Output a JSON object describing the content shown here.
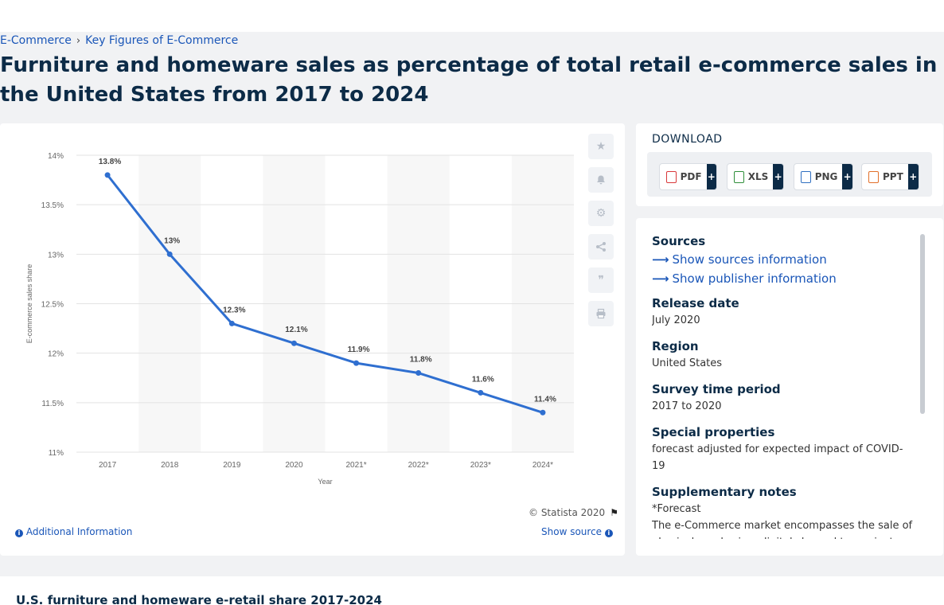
{
  "breadcrumb": {
    "items": [
      "E-Commerce",
      "Key Figures of E-Commerce"
    ]
  },
  "page_title": "Furniture and homeware sales as percentage of total retail e-commerce sales in the United States from 2017 to 2024",
  "chart_footer": {
    "copyright": "© Statista 2020",
    "additional_info": "Additional Information",
    "show_source": "Show source"
  },
  "download": {
    "title": "DOWNLOAD",
    "buttons": [
      {
        "label": "PDF",
        "color": "#d9383a"
      },
      {
        "label": "XLS",
        "color": "#2f8f3a"
      },
      {
        "label": "PNG",
        "color": "#2f6fc0"
      },
      {
        "label": "PPT",
        "color": "#e2702a"
      }
    ]
  },
  "meta": {
    "sources_heading": "Sources",
    "show_sources": "Show sources information",
    "show_publisher": "Show publisher information",
    "release_date_heading": "Release date",
    "release_date": "July 2020",
    "region_heading": "Region",
    "region": "United States",
    "survey_heading": "Survey time period",
    "survey": "2017 to 2020",
    "special_heading": "Special properties",
    "special": "forecast adjusted for expected impact of COVID-19",
    "notes_heading": "Supplementary notes",
    "notes_1": "*Forecast",
    "notes_2": "The e-Commerce market encompasses the sale of physical goods via a digital channel to a private end"
  },
  "bottom_title": "U.S. furniture and homeware e-retail share 2017-2024",
  "chart_data": {
    "type": "line",
    "categories": [
      "2017",
      "2018",
      "2019",
      "2020",
      "2021*",
      "2022*",
      "2023*",
      "2024*"
    ],
    "values": [
      13.8,
      13,
      12.3,
      12.1,
      11.9,
      11.8,
      11.6,
      11.4
    ],
    "data_labels": [
      "13.8%",
      "13%",
      "12.3%",
      "12.1%",
      "11.9%",
      "11.8%",
      "11.6%",
      "11.4%"
    ],
    "xlabel": "Year",
    "ylabel": "E-commerce sales share",
    "ylim": [
      11,
      14
    ],
    "yticks": [
      11,
      11.5,
      12,
      12.5,
      13,
      13.5,
      14
    ],
    "ytick_labels": [
      "11%",
      "11.5%",
      "12%",
      "12.5%",
      "13%",
      "13.5%",
      "14%"
    ],
    "line_color": "#2f6fd0",
    "grid": true
  }
}
